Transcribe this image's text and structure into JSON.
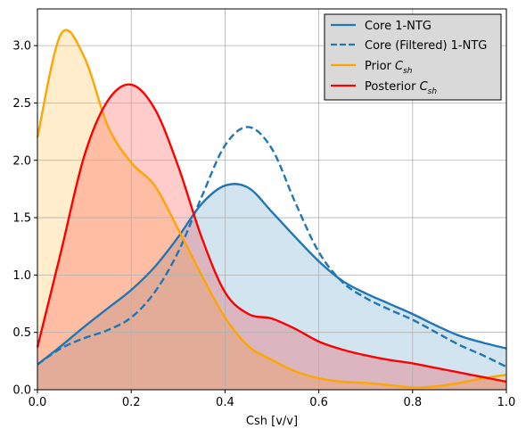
{
  "chart_data": {
    "type": "area",
    "title": "",
    "xlabel": "Csh [v/v]",
    "ylabel": "",
    "xlim": [
      0.0,
      1.0
    ],
    "ylim": [
      0.0,
      3.32
    ],
    "xticks": [
      "0.0",
      "0.2",
      "0.4",
      "0.6",
      "0.8",
      "1.0"
    ],
    "yticks": [
      "0.0",
      "0.5",
      "1.0",
      "1.5",
      "2.0",
      "2.5",
      "3.0"
    ],
    "grid": true,
    "legend_position": "top-right",
    "x": [
      0.0,
      0.05,
      0.1,
      0.15,
      0.2,
      0.25,
      0.3,
      0.35,
      0.4,
      0.45,
      0.5,
      0.55,
      0.6,
      0.65,
      0.7,
      0.75,
      0.8,
      0.85,
      0.9,
      0.95,
      1.0
    ],
    "series": [
      {
        "name": "Core 1-NTG",
        "values": [
          0.22,
          0.38,
          0.55,
          0.71,
          0.87,
          1.07,
          1.33,
          1.62,
          1.78,
          1.76,
          1.55,
          1.33,
          1.12,
          0.95,
          0.84,
          0.75,
          0.66,
          0.56,
          0.47,
          0.41,
          0.36
        ],
        "color": "#1f77b4",
        "linestyle": "solid",
        "fill": true
      },
      {
        "name": "Core (Filtered) 1-NTG",
        "values": [
          0.22,
          0.36,
          0.45,
          0.52,
          0.63,
          0.85,
          1.2,
          1.68,
          2.13,
          2.29,
          2.1,
          1.63,
          1.2,
          0.94,
          0.8,
          0.7,
          0.61,
          0.5,
          0.39,
          0.3,
          0.2
        ],
        "color": "#1f77b4",
        "linestyle": "dashed",
        "fill": false
      },
      {
        "name": "Prior C_sh",
        "values": [
          2.2,
          3.1,
          2.9,
          2.3,
          1.98,
          1.78,
          1.4,
          1.0,
          0.63,
          0.38,
          0.26,
          0.16,
          0.1,
          0.07,
          0.06,
          0.04,
          0.02,
          0.03,
          0.06,
          0.1,
          0.13
        ],
        "color": "#ffa500",
        "linestyle": "solid",
        "fill": true
      },
      {
        "name": "Posterior C_sh",
        "values": [
          0.37,
          1.2,
          2.04,
          2.52,
          2.66,
          2.45,
          1.95,
          1.33,
          0.85,
          0.66,
          0.62,
          0.53,
          0.42,
          0.35,
          0.3,
          0.26,
          0.23,
          0.19,
          0.15,
          0.11,
          0.07
        ],
        "color": "#ff0000",
        "linestyle": "solid",
        "fill": true
      }
    ],
    "legend": [
      {
        "label": "Core 1-NTG"
      },
      {
        "label": "Core (Filtered) 1-NTG"
      },
      {
        "label": "Prior ",
        "sub": "sh",
        "base": "C"
      },
      {
        "label": "Posterior ",
        "sub": "sh",
        "base": "C"
      }
    ]
  }
}
